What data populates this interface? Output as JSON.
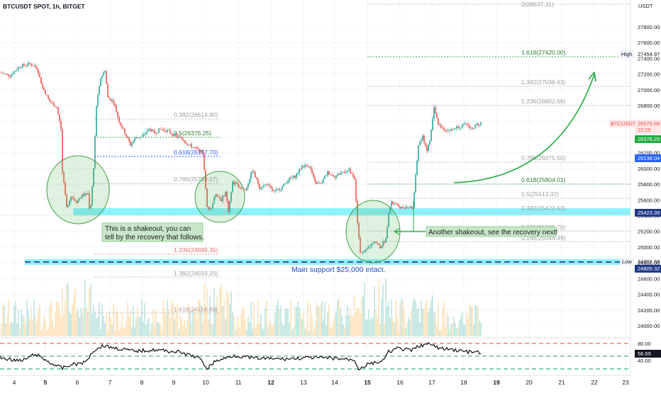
{
  "header": {
    "symbol_label": "BTCUSDT SPOT, 1h, BITGET"
  },
  "price_axis": {
    "currency": "USDT",
    "ticks": [
      "27800.00",
      "27600.00",
      "27400.00",
      "27200.00",
      "27000.00",
      "26800.00",
      "26600.00",
      "26400.00",
      "26200.00",
      "26000.00",
      "25800.00",
      "25600.00",
      "25400.00",
      "25200.00",
      "25000.00",
      "24800.00",
      "24600.00",
      "24400.00",
      "24200.00",
      "24000.00"
    ],
    "tick_values": [
      27800,
      27600,
      27400,
      27200,
      27000,
      26800,
      26600,
      26400,
      26200,
      26000,
      25800,
      25600,
      25400,
      25200,
      25000,
      24800,
      24600,
      24400,
      24200,
      24000
    ],
    "badges": {
      "high_tag": "High",
      "high_value": "27454.97",
      "last_symbol": "BTCUSDT",
      "last_value": "26575.99",
      "last_timer": "22:25",
      "green_value": "26376.25",
      "blue_value_1": "26138.04",
      "blue_value_2": "25423.39",
      "low_tag": "Low",
      "low_value": "24807.69",
      "blue_value_3": "24805.32"
    }
  },
  "time_axis": {
    "labels": [
      "4",
      "5",
      "6",
      "7",
      "8",
      "9",
      "10",
      "11",
      "12",
      "13",
      "14",
      "15",
      "16",
      "17",
      "18",
      "19",
      "20",
      "21",
      "22",
      "23"
    ],
    "bold": [
      "5",
      "12",
      "15",
      "19"
    ]
  },
  "fib_upper": {
    "levels": [
      {
        "label": "2(28037.31)"
      },
      {
        "label": "1.618(27420.00)"
      },
      {
        "label": "1.382(27038.63)"
      },
      {
        "label": "1.236(26802.69)"
      },
      {
        "label": "0.786(26075.50)"
      },
      {
        "label": "0.618(25804.01)"
      },
      {
        "label": "0.5(25613.32)"
      },
      {
        "label": "0.382(25422.63)"
      },
      {
        "label": "0.236(25186.70)"
      },
      {
        "label": "0.146(25044.49)"
      }
    ]
  },
  "fib_lower": {
    "levels": [
      {
        "label": "0.382(26614.80)"
      },
      {
        "label": "0.5(26376.25)"
      },
      {
        "label": "0.618(26137.70)"
      },
      {
        "label": "0.786(25798.07)"
      },
      {
        "label": "1.236(24886.35)"
      },
      {
        "label": "1.382(24593.20)"
      },
      {
        "label": "1.618(24116.80)"
      }
    ]
  },
  "annotations": {
    "shakeout_1": [
      "This is a shakeout, you can",
      "tell by the recovery that follows."
    ],
    "shakeout_2": "Another shakeout, see the recovery next!",
    "support": "Main support $25,000 intact."
  },
  "rsi": {
    "ticks": [
      "80.00",
      "40.00"
    ],
    "value": "56.69"
  },
  "colors": {
    "up": "#26a69a",
    "down": "#ef5350",
    "fib_green": "#4caf50",
    "fib_grey": "#9e9e9e",
    "fib_blue": "#2962ff",
    "support_band": "#00e5ff",
    "arrow": "#22ab3f"
  }
}
